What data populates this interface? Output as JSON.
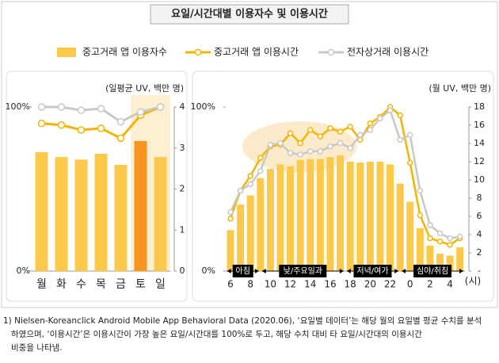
{
  "title": "요일/시간대별 이용자수 및 이용시간",
  "notes": [
    "1) Nielsen-Koreanclick Android Mobile App Behavioral Data (2020.06), ‘요일별 데이터’는 해당 월의 요일별 평균 수치를 분석",
    "하였으며, ‘이용시간’은 이용시간이 가장 높은 요일/시간대를 100%로 두고, 해당 수치 대비 타 요일/시간대의 이용시간",
    "비중을 나타냄."
  ],
  "chart_data": [
    {
      "type": "bar_line",
      "y2_label": "(일평균 UV, 백만 명)",
      "categories": [
        "월",
        "화",
        "수",
        "목",
        "금",
        "토",
        "일"
      ],
      "ylim": [
        0,
        100
      ],
      "yticks": [
        {
          "value": 0,
          "label": "0%"
        },
        {
          "value": 100,
          "label": "100%"
        }
      ],
      "y2lim": [
        0,
        4
      ],
      "y2ticks": [
        0,
        1,
        2,
        3,
        4
      ],
      "series": [
        {
          "name": "중고거래 앱 이용자수",
          "kind": "bar",
          "axis": "y2",
          "color": "#fdc94b",
          "colors": [
            "#fdc94b",
            "#fdc94b",
            "#fdc94b",
            "#fdc94b",
            "#fdc94b",
            "#f7941d",
            "#fdc94b"
          ],
          "values": [
            2.9,
            2.78,
            2.72,
            2.86,
            2.59,
            3.17,
            2.78
          ]
        },
        {
          "name": "중고거래 앱 이용시간",
          "kind": "line",
          "color": "#f4b400",
          "values": [
            90,
            89,
            86,
            87,
            81,
            95,
            100
          ]
        },
        {
          "name": "전자상거래 이용시간",
          "kind": "line",
          "color": "#c8c8c8",
          "values": [
            100,
            100,
            98,
            99,
            91,
            97,
            100
          ]
        }
      ]
    },
    {
      "type": "bar_line",
      "y2_label": "(월 UV, 백만 명)",
      "x_label": "(시)",
      "categories": [
        "6",
        null,
        "8",
        null,
        "10",
        null,
        "12",
        null,
        "14",
        null,
        "16",
        null,
        "18",
        null,
        "20",
        null,
        "22",
        null,
        "0",
        null,
        "2",
        null,
        "4",
        null
      ],
      "periods": [
        "아침",
        "낮/주요일과",
        "저녁/여가",
        "심야/취침"
      ],
      "ylim": [
        0,
        100
      ],
      "yticks": [
        {
          "value": 0,
          "label": "0%"
        },
        {
          "value": 100,
          "label": "100%"
        }
      ],
      "y2lim": [
        0,
        18
      ],
      "y2ticks": [
        {
          "value": 0,
          "label": "-"
        },
        2,
        4,
        6,
        8,
        10,
        12,
        14,
        16,
        18
      ],
      "series": [
        {
          "name": "중고거래 앱 이용자수",
          "kind": "bar",
          "axis": "y2",
          "color": "#fdc94b",
          "values": [
            4.5,
            7.3,
            8.3,
            10.2,
            11.2,
            11.7,
            11.5,
            12.2,
            12.3,
            12.3,
            12.5,
            12.7,
            12,
            11.9,
            12,
            12,
            11.7,
            9.6,
            7.6,
            4.7,
            2.8,
            1.9,
            1.7,
            2.6
          ]
        },
        {
          "name": "중고거래 앱 이용시간",
          "kind": "line",
          "color": "#f4b400",
          "values": [
            32,
            49,
            58,
            69,
            76,
            77,
            84,
            78,
            86,
            82,
            87,
            85,
            88,
            80,
            90,
            94,
            100,
            95,
            66,
            34,
            20,
            18,
            16,
            20
          ]
        },
        {
          "name": "전자상거래 이용시간",
          "kind": "line",
          "color": "#c8c8c8",
          "values": [
            36,
            49,
            53,
            61,
            77,
            78,
            72,
            71,
            73,
            73,
            76,
            78,
            75,
            83,
            86,
            93,
            98,
            80,
            83,
            49,
            28,
            23,
            20,
            21
          ]
        }
      ]
    }
  ]
}
